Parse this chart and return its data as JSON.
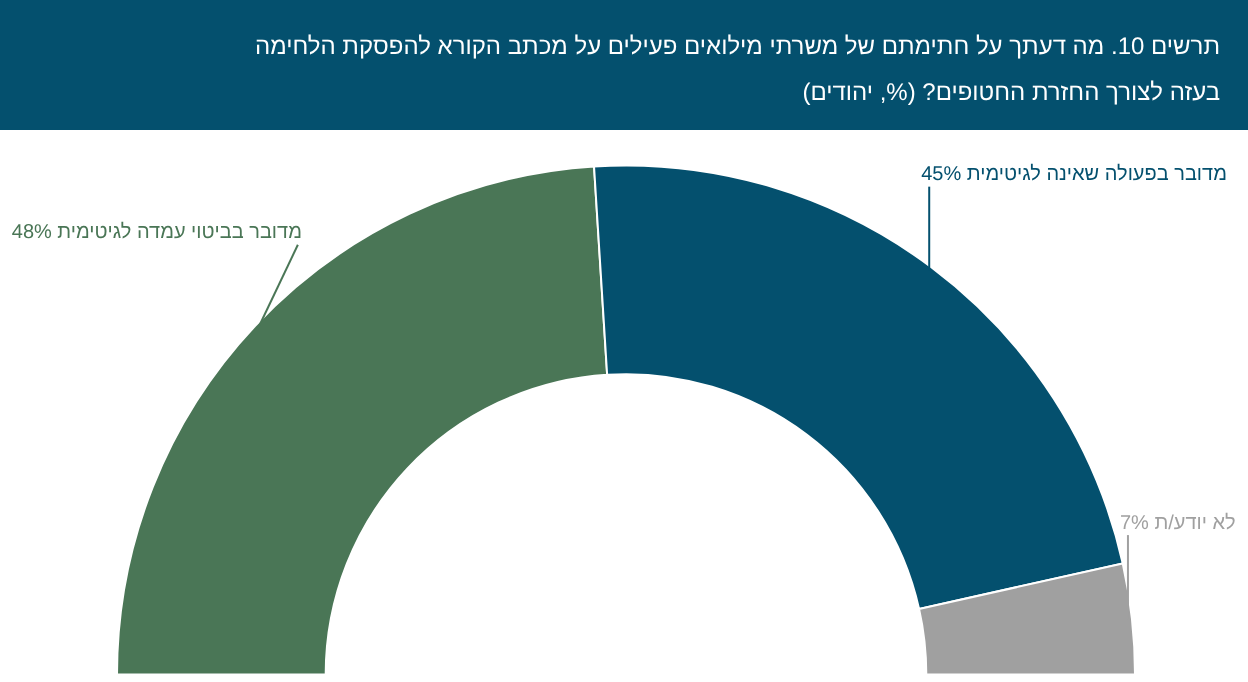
{
  "chart_data": {
    "type": "donut",
    "title": "תרשים 10. מה דעתך על חתימתם של משרתי מילואים פעילים על מכתב הקורא להפסקת הלחימה בעזה לצורך החזרת החטופים? (%, יהודים)",
    "categories": [
      "מדובר בביטוי עמדה לגיטימית",
      "מדובר בפעולה שאינה לגיטימית",
      "לא יודע/ת"
    ],
    "values": [
      48,
      45,
      7
    ],
    "value_labels": [
      "48%",
      "45%",
      "7%"
    ],
    "colors": [
      "#4a7656",
      "#04506e",
      "#a0a0a0"
    ],
    "legend": false
  }
}
